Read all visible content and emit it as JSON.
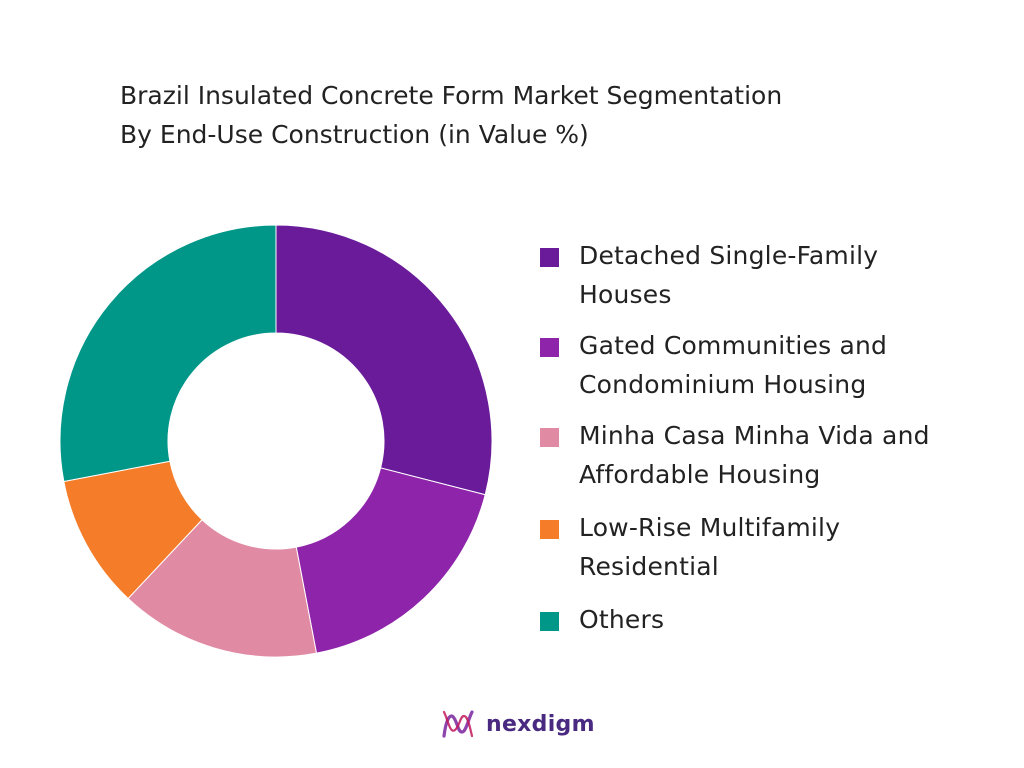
{
  "title": {
    "line1": "Brazil Insulated Concrete Form Market Segmentation",
    "line2": "By End-Use Construction (in Value %)"
  },
  "chart_data": {
    "type": "pie",
    "variant": "donut",
    "title": "Brazil Insulated Concrete Form Market Segmentation By End-Use Construction (in Value %)",
    "legend_position": "right",
    "start_angle_deg": 0,
    "direction": "clockwise",
    "series": [
      {
        "name": "Detached Single-Family Houses",
        "value": 29,
        "color": "#6a1b9a"
      },
      {
        "name": "Gated Communities and Condominium Housing",
        "value": 18,
        "color": "#8e24aa"
      },
      {
        "name": "Minha Casa Minha Vida and Affordable Housing",
        "value": 15,
        "color": "#e08aa3"
      },
      {
        "name": "Low-Rise Multifamily Residential",
        "value": 10,
        "color": "#f57c28"
      },
      {
        "name": "Others",
        "value": 28,
        "color": "#009688"
      }
    ]
  },
  "legend": {
    "items": [
      {
        "line1": "Detached Single-Family",
        "line2": "Houses",
        "color": "#6a1b9a"
      },
      {
        "line1": "Gated Communities and",
        "line2": "Condominium Housing",
        "color": "#8e24aa"
      },
      {
        "line1": "Minha Casa Minha Vida and",
        "line2": "Affordable Housing",
        "color": "#e08aa3"
      },
      {
        "line1": "Low-Rise Multifamily",
        "line2": "Residential",
        "color": "#f57c28"
      },
      {
        "line1": "Others",
        "line2": "",
        "color": "#009688"
      }
    ]
  },
  "brand": {
    "name": "nexdigm",
    "icon": "nexdigm-logo-icon",
    "color": "#4a2a80"
  }
}
